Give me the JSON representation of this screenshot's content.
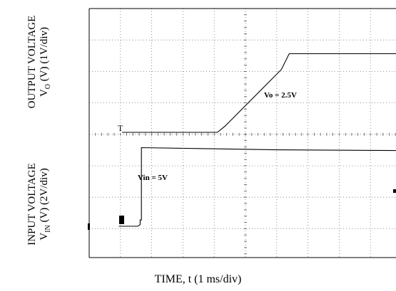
{
  "chart_data": {
    "type": "line",
    "xlabel": "TIME, t (1 ms/div)",
    "ylabel_output_line1": "OUTPUT VOLTAGE",
    "ylabel_output_line2_prefix": "V",
    "ylabel_output_line2_sub": "O",
    "ylabel_output_line2_suffix": " (V) (1V/div)",
    "ylabel_input_line1": "INPUT VOLTAGE",
    "ylabel_input_line2_prefix": "V",
    "ylabel_input_line2_sub": "IN",
    "ylabel_input_line2_suffix": " (V) (2V/div)",
    "xlim": [
      0,
      10
    ],
    "grid": true,
    "trigger_marker": "T",
    "series": [
      {
        "label": "Vo = 2.5V",
        "units": "output divisions (1V/div) above trace baseline",
        "points": [
          [
            0,
            0
          ],
          [
            3.05,
            0
          ],
          [
            3.3,
            0.2
          ],
          [
            5.1,
            2.0
          ],
          [
            5.35,
            2.5
          ],
          [
            10,
            2.5
          ]
        ]
      },
      {
        "label": "Vin = 5V",
        "units": "input divisions (2V/div) above trace baseline",
        "points": [
          [
            -0.1,
            0
          ],
          [
            0.5,
            0
          ],
          [
            0.58,
            0.05
          ],
          [
            0.58,
            0.2
          ],
          [
            0.62,
            0.2
          ],
          [
            0.62,
            2.5
          ],
          [
            2.5,
            2.47
          ],
          [
            5,
            2.43
          ],
          [
            10,
            2.4
          ]
        ]
      }
    ]
  }
}
